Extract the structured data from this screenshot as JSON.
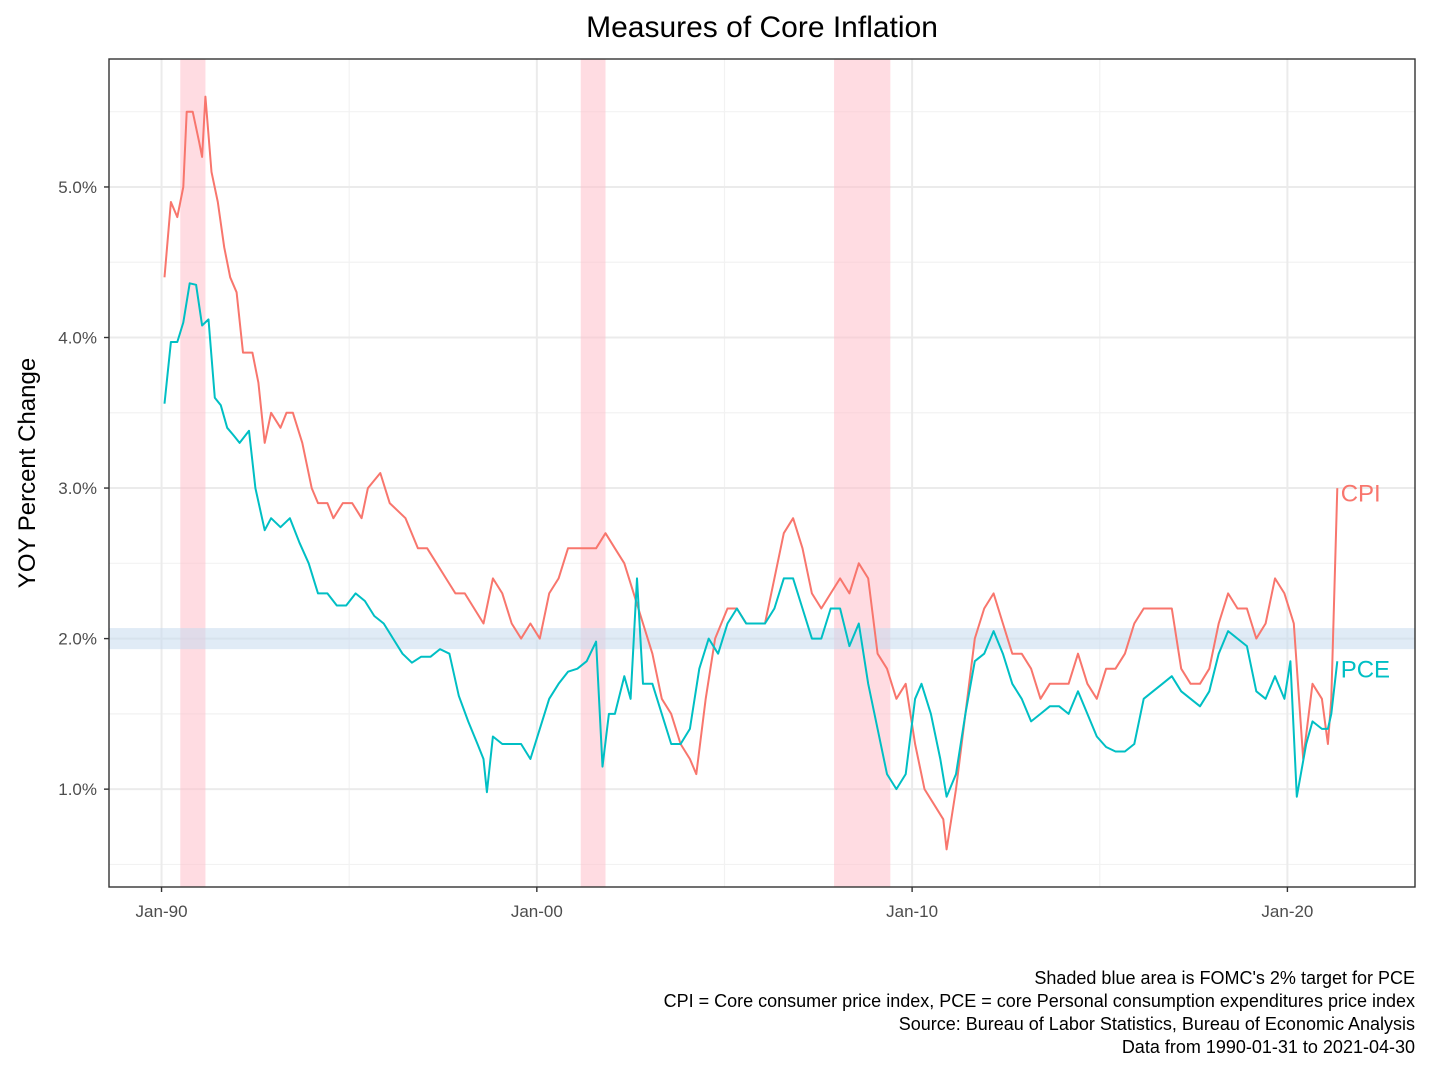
{
  "chart_data": {
    "type": "line",
    "title": "Measures of Core Inflation",
    "xlabel": "",
    "ylabel": "YOY Percent Change",
    "x_ticks": [
      {
        "label": "Jan-90",
        "year": 1990
      },
      {
        "label": "Jan-00",
        "year": 2000
      },
      {
        "label": "Jan-10",
        "year": 2010
      },
      {
        "label": "Jan-20",
        "year": 2020
      }
    ],
    "y_ticks": [
      {
        "label": "1.0%",
        "value": 1.0
      },
      {
        "label": "2.0%",
        "value": 2.0
      },
      {
        "label": "3.0%",
        "value": 3.0
      },
      {
        "label": "4.0%",
        "value": 4.0
      },
      {
        "label": "5.0%",
        "value": 5.0
      }
    ],
    "xlim": [
      1988.6,
      2023.4
    ],
    "ylim": [
      0.35,
      5.85
    ],
    "grid": true,
    "target_band": {
      "label": "FOMC's 2% target for PCE",
      "ymin": 1.93,
      "ymax": 2.07,
      "color": "#c6dbef"
    },
    "recessions": [
      {
        "start": 1990.5,
        "end": 1991.17
      },
      {
        "start": 2001.17,
        "end": 2001.83
      },
      {
        "start": 2007.92,
        "end": 2009.42
      }
    ],
    "recession_color": "#ffc0cb",
    "series": [
      {
        "name": "CPI",
        "color": "#f8766d",
        "points": [
          [
            1990.08,
            4.4
          ],
          [
            1990.25,
            4.9
          ],
          [
            1990.42,
            4.8
          ],
          [
            1990.58,
            5.0
          ],
          [
            1990.67,
            5.5
          ],
          [
            1990.83,
            5.5
          ],
          [
            1991.0,
            5.3
          ],
          [
            1991.08,
            5.2
          ],
          [
            1991.17,
            5.6
          ],
          [
            1991.33,
            5.1
          ],
          [
            1991.5,
            4.9
          ],
          [
            1991.67,
            4.6
          ],
          [
            1991.83,
            4.4
          ],
          [
            1992.0,
            4.3
          ],
          [
            1992.17,
            3.9
          ],
          [
            1992.42,
            3.9
          ],
          [
            1992.58,
            3.7
          ],
          [
            1992.75,
            3.3
          ],
          [
            1992.92,
            3.5
          ],
          [
            1993.17,
            3.4
          ],
          [
            1993.33,
            3.5
          ],
          [
            1993.5,
            3.5
          ],
          [
            1993.75,
            3.3
          ],
          [
            1994.0,
            3.0
          ],
          [
            1994.17,
            2.9
          ],
          [
            1994.42,
            2.9
          ],
          [
            1994.58,
            2.8
          ],
          [
            1994.83,
            2.9
          ],
          [
            1995.08,
            2.9
          ],
          [
            1995.33,
            2.8
          ],
          [
            1995.5,
            3.0
          ],
          [
            1995.83,
            3.1
          ],
          [
            1996.08,
            2.9
          ],
          [
            1996.5,
            2.8
          ],
          [
            1996.83,
            2.6
          ],
          [
            1997.08,
            2.6
          ],
          [
            1997.33,
            2.5
          ],
          [
            1997.58,
            2.4
          ],
          [
            1997.83,
            2.3
          ],
          [
            1998.08,
            2.3
          ],
          [
            1998.33,
            2.2
          ],
          [
            1998.58,
            2.1
          ],
          [
            1998.83,
            2.4
          ],
          [
            1999.08,
            2.3
          ],
          [
            1999.33,
            2.1
          ],
          [
            1999.58,
            2.0
          ],
          [
            1999.83,
            2.1
          ],
          [
            2000.08,
            2.0
          ],
          [
            2000.33,
            2.3
          ],
          [
            2000.58,
            2.4
          ],
          [
            2000.83,
            2.6
          ],
          [
            2001.08,
            2.6
          ],
          [
            2001.33,
            2.6
          ],
          [
            2001.58,
            2.6
          ],
          [
            2001.83,
            2.7
          ],
          [
            2002.08,
            2.6
          ],
          [
            2002.33,
            2.5
          ],
          [
            2002.58,
            2.3
          ],
          [
            2002.83,
            2.1
          ],
          [
            2003.08,
            1.9
          ],
          [
            2003.33,
            1.6
          ],
          [
            2003.58,
            1.5
          ],
          [
            2003.83,
            1.3
          ],
          [
            2004.08,
            1.2
          ],
          [
            2004.25,
            1.1
          ],
          [
            2004.5,
            1.6
          ],
          [
            2004.75,
            2.0
          ],
          [
            2005.08,
            2.2
          ],
          [
            2005.33,
            2.2
          ],
          [
            2005.58,
            2.1
          ],
          [
            2005.83,
            2.1
          ],
          [
            2006.08,
            2.1
          ],
          [
            2006.33,
            2.4
          ],
          [
            2006.58,
            2.7
          ],
          [
            2006.83,
            2.8
          ],
          [
            2007.08,
            2.6
          ],
          [
            2007.33,
            2.3
          ],
          [
            2007.58,
            2.2
          ],
          [
            2007.83,
            2.3
          ],
          [
            2008.08,
            2.4
          ],
          [
            2008.33,
            2.3
          ],
          [
            2008.58,
            2.5
          ],
          [
            2008.83,
            2.4
          ],
          [
            2009.08,
            1.9
          ],
          [
            2009.33,
            1.8
          ],
          [
            2009.58,
            1.6
          ],
          [
            2009.83,
            1.7
          ],
          [
            2010.08,
            1.3
          ],
          [
            2010.33,
            1.0
          ],
          [
            2010.58,
            0.9
          ],
          [
            2010.83,
            0.8
          ],
          [
            2010.92,
            0.6
          ],
          [
            2011.17,
            1.0
          ],
          [
            2011.42,
            1.5
          ],
          [
            2011.67,
            2.0
          ],
          [
            2011.92,
            2.2
          ],
          [
            2012.17,
            2.3
          ],
          [
            2012.42,
            2.1
          ],
          [
            2012.67,
            1.9
          ],
          [
            2012.92,
            1.9
          ],
          [
            2013.17,
            1.8
          ],
          [
            2013.42,
            1.6
          ],
          [
            2013.67,
            1.7
          ],
          [
            2013.92,
            1.7
          ],
          [
            2014.17,
            1.7
          ],
          [
            2014.42,
            1.9
          ],
          [
            2014.67,
            1.7
          ],
          [
            2014.92,
            1.6
          ],
          [
            2015.17,
            1.8
          ],
          [
            2015.42,
            1.8
          ],
          [
            2015.67,
            1.9
          ],
          [
            2015.92,
            2.1
          ],
          [
            2016.17,
            2.2
          ],
          [
            2016.42,
            2.2
          ],
          [
            2016.67,
            2.2
          ],
          [
            2016.92,
            2.2
          ],
          [
            2017.17,
            1.8
          ],
          [
            2017.42,
            1.7
          ],
          [
            2017.67,
            1.7
          ],
          [
            2017.92,
            1.8
          ],
          [
            2018.17,
            2.1
          ],
          [
            2018.42,
            2.3
          ],
          [
            2018.67,
            2.2
          ],
          [
            2018.92,
            2.2
          ],
          [
            2019.17,
            2.0
          ],
          [
            2019.42,
            2.1
          ],
          [
            2019.67,
            2.4
          ],
          [
            2019.92,
            2.3
          ],
          [
            2020.17,
            2.1
          ],
          [
            2020.42,
            1.2
          ],
          [
            2020.67,
            1.7
          ],
          [
            2020.92,
            1.6
          ],
          [
            2021.08,
            1.3
          ],
          [
            2021.17,
            1.6
          ],
          [
            2021.33,
            3.0
          ]
        ]
      },
      {
        "name": "PCE",
        "color": "#00bfc4",
        "points": [
          [
            1990.08,
            3.56
          ],
          [
            1990.25,
            3.97
          ],
          [
            1990.42,
            3.97
          ],
          [
            1990.58,
            4.1
          ],
          [
            1990.75,
            4.36
          ],
          [
            1990.92,
            4.35
          ],
          [
            1991.08,
            4.08
          ],
          [
            1991.25,
            4.12
          ],
          [
            1991.42,
            3.6
          ],
          [
            1991.58,
            3.55
          ],
          [
            1991.75,
            3.4
          ],
          [
            1991.92,
            3.35
          ],
          [
            1992.08,
            3.3
          ],
          [
            1992.33,
            3.38
          ],
          [
            1992.5,
            3.0
          ],
          [
            1992.75,
            2.72
          ],
          [
            1992.92,
            2.8
          ],
          [
            1993.17,
            2.74
          ],
          [
            1993.42,
            2.8
          ],
          [
            1993.67,
            2.64
          ],
          [
            1993.92,
            2.5
          ],
          [
            1994.17,
            2.3
          ],
          [
            1994.42,
            2.3
          ],
          [
            1994.67,
            2.22
          ],
          [
            1994.92,
            2.22
          ],
          [
            1995.17,
            2.3
          ],
          [
            1995.42,
            2.25
          ],
          [
            1995.67,
            2.15
          ],
          [
            1995.92,
            2.1
          ],
          [
            1996.17,
            2.0
          ],
          [
            1996.42,
            1.9
          ],
          [
            1996.67,
            1.84
          ],
          [
            1996.92,
            1.88
          ],
          [
            1997.17,
            1.88
          ],
          [
            1997.42,
            1.93
          ],
          [
            1997.67,
            1.9
          ],
          [
            1997.92,
            1.62
          ],
          [
            1998.17,
            1.45
          ],
          [
            1998.42,
            1.3
          ],
          [
            1998.58,
            1.2
          ],
          [
            1998.67,
            0.98
          ],
          [
            1998.83,
            1.35
          ],
          [
            1999.08,
            1.3
          ],
          [
            1999.33,
            1.3
          ],
          [
            1999.58,
            1.3
          ],
          [
            1999.83,
            1.2
          ],
          [
            2000.08,
            1.4
          ],
          [
            2000.33,
            1.6
          ],
          [
            2000.58,
            1.7
          ],
          [
            2000.83,
            1.78
          ],
          [
            2001.08,
            1.8
          ],
          [
            2001.33,
            1.85
          ],
          [
            2001.58,
            1.98
          ],
          [
            2001.75,
            1.15
          ],
          [
            2001.92,
            1.5
          ],
          [
            2002.08,
            1.5
          ],
          [
            2002.33,
            1.75
          ],
          [
            2002.5,
            1.6
          ],
          [
            2002.67,
            2.4
          ],
          [
            2002.83,
            1.7
          ],
          [
            2003.08,
            1.7
          ],
          [
            2003.33,
            1.5
          ],
          [
            2003.58,
            1.3
          ],
          [
            2003.83,
            1.3
          ],
          [
            2004.08,
            1.4
          ],
          [
            2004.33,
            1.8
          ],
          [
            2004.58,
            2.0
          ],
          [
            2004.83,
            1.9
          ],
          [
            2005.08,
            2.1
          ],
          [
            2005.33,
            2.2
          ],
          [
            2005.58,
            2.1
          ],
          [
            2005.83,
            2.1
          ],
          [
            2006.08,
            2.1
          ],
          [
            2006.33,
            2.2
          ],
          [
            2006.58,
            2.4
          ],
          [
            2006.83,
            2.4
          ],
          [
            2007.08,
            2.2
          ],
          [
            2007.33,
            2.0
          ],
          [
            2007.58,
            2.0
          ],
          [
            2007.83,
            2.2
          ],
          [
            2008.08,
            2.2
          ],
          [
            2008.33,
            1.95
          ],
          [
            2008.58,
            2.1
          ],
          [
            2008.83,
            1.7
          ],
          [
            2009.08,
            1.4
          ],
          [
            2009.33,
            1.1
          ],
          [
            2009.58,
            1.0
          ],
          [
            2009.83,
            1.1
          ],
          [
            2010.08,
            1.6
          ],
          [
            2010.25,
            1.7
          ],
          [
            2010.5,
            1.5
          ],
          [
            2010.75,
            1.2
          ],
          [
            2010.92,
            0.95
          ],
          [
            2011.17,
            1.1
          ],
          [
            2011.42,
            1.5
          ],
          [
            2011.67,
            1.85
          ],
          [
            2011.92,
            1.9
          ],
          [
            2012.17,
            2.05
          ],
          [
            2012.42,
            1.9
          ],
          [
            2012.67,
            1.7
          ],
          [
            2012.92,
            1.6
          ],
          [
            2013.17,
            1.45
          ],
          [
            2013.42,
            1.5
          ],
          [
            2013.67,
            1.55
          ],
          [
            2013.92,
            1.55
          ],
          [
            2014.17,
            1.5
          ],
          [
            2014.42,
            1.65
          ],
          [
            2014.67,
            1.5
          ],
          [
            2014.92,
            1.35
          ],
          [
            2015.17,
            1.28
          ],
          [
            2015.42,
            1.25
          ],
          [
            2015.67,
            1.25
          ],
          [
            2015.92,
            1.3
          ],
          [
            2016.17,
            1.6
          ],
          [
            2016.42,
            1.65
          ],
          [
            2016.67,
            1.7
          ],
          [
            2016.92,
            1.75
          ],
          [
            2017.17,
            1.65
          ],
          [
            2017.42,
            1.6
          ],
          [
            2017.67,
            1.55
          ],
          [
            2017.92,
            1.65
          ],
          [
            2018.17,
            1.9
          ],
          [
            2018.42,
            2.05
          ],
          [
            2018.67,
            2.0
          ],
          [
            2018.92,
            1.95
          ],
          [
            2019.17,
            1.65
          ],
          [
            2019.42,
            1.6
          ],
          [
            2019.67,
            1.75
          ],
          [
            2019.92,
            1.6
          ],
          [
            2020.08,
            1.85
          ],
          [
            2020.25,
            0.95
          ],
          [
            2020.5,
            1.3
          ],
          [
            2020.67,
            1.45
          ],
          [
            2020.92,
            1.4
          ],
          [
            2021.08,
            1.4
          ],
          [
            2021.17,
            1.5
          ],
          [
            2021.33,
            1.85
          ]
        ]
      }
    ],
    "series_labels": [
      {
        "text": "CPI",
        "x": 2021.42,
        "y": 2.97
      },
      {
        "text": "PCE",
        "x": 2021.42,
        "y": 1.8
      }
    ],
    "captions": [
      "Shaded blue area is FOMC's 2% target for PCE",
      "CPI = Core consumer price index, PCE = core Personal consumption expenditures price index",
      "Source: Bureau of Labor Statistics, Bureau of Economic Analysis",
      "Data from 1990-01-31 to 2021-04-30"
    ]
  }
}
